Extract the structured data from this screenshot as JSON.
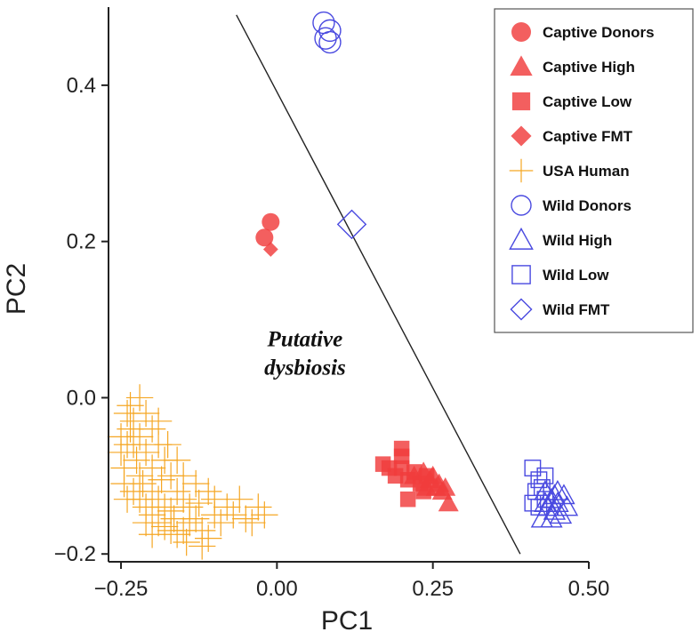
{
  "chart_data": {
    "type": "scatter",
    "title": "",
    "xlabel": "PC1",
    "ylabel": "PC2",
    "xlim": [
      -0.27,
      0.5
    ],
    "ylim": [
      -0.21,
      0.5
    ],
    "xticks": [
      -0.25,
      0.0,
      0.25,
      0.5
    ],
    "yticks": [
      -0.2,
      0.0,
      0.2,
      0.4
    ],
    "xtick_labels": [
      "−0.25",
      "0.00",
      "0.25",
      "0.50"
    ],
    "ytick_labels": [
      "−0.2",
      "0.0",
      "0.2",
      "0.4"
    ],
    "grid": false,
    "legend_position": "top-right",
    "annotation": {
      "lines": [
        "Putative",
        "dysbiosis"
      ],
      "x": 0.045,
      "y": 0.05
    },
    "divider_line": [
      [
        -0.065,
        0.49
      ],
      [
        0.39,
        -0.2
      ]
    ],
    "series": [
      {
        "name": "Captive Donors",
        "marker": "circle",
        "filled": true,
        "color": "#f03c3c",
        "points": [
          [
            -0.01,
            0.225
          ],
          [
            -0.02,
            0.205
          ]
        ]
      },
      {
        "name": "Captive High",
        "marker": "triangle",
        "filled": true,
        "color": "#f03c3c",
        "points": [
          [
            0.22,
            -0.1
          ],
          [
            0.24,
            -0.115
          ],
          [
            0.255,
            -0.115
          ],
          [
            0.265,
            -0.12
          ],
          [
            0.27,
            -0.115
          ],
          [
            0.25,
            -0.1
          ],
          [
            0.26,
            -0.11
          ],
          [
            0.245,
            -0.105
          ],
          [
            0.275,
            -0.135
          ],
          [
            0.235,
            -0.095
          ]
        ]
      },
      {
        "name": "Captive Low",
        "marker": "square",
        "filled": true,
        "color": "#f03c3c",
        "points": [
          [
            0.17,
            -0.085
          ],
          [
            0.18,
            -0.09
          ],
          [
            0.2,
            -0.075
          ],
          [
            0.2,
            -0.065
          ],
          [
            0.19,
            -0.1
          ],
          [
            0.21,
            -0.105
          ],
          [
            0.22,
            -0.095
          ],
          [
            0.23,
            -0.11
          ],
          [
            0.21,
            -0.13
          ],
          [
            0.235,
            -0.12
          ],
          [
            0.24,
            -0.1
          ],
          [
            0.2,
            -0.09
          ]
        ]
      },
      {
        "name": "Captive FMT",
        "marker": "diamond",
        "filled": true,
        "color": "#f03c3c",
        "points": [
          [
            -0.01,
            0.19
          ]
        ]
      },
      {
        "name": "USA Human",
        "marker": "plus",
        "filled": false,
        "color": "#f5a623",
        "points": [
          [
            -0.24,
            -0.02
          ],
          [
            -0.235,
            -0.04
          ],
          [
            -0.23,
            -0.06
          ],
          [
            -0.225,
            -0.08
          ],
          [
            -0.22,
            -0.1
          ],
          [
            -0.215,
            -0.11
          ],
          [
            -0.24,
            -0.06
          ],
          [
            -0.245,
            -0.09
          ],
          [
            -0.23,
            -0.12
          ],
          [
            -0.22,
            -0.13
          ],
          [
            -0.21,
            -0.14
          ],
          [
            -0.2,
            -0.15
          ],
          [
            -0.19,
            -0.16
          ],
          [
            -0.18,
            -0.165
          ],
          [
            -0.17,
            -0.17
          ],
          [
            -0.16,
            -0.175
          ],
          [
            -0.15,
            -0.17
          ],
          [
            -0.14,
            -0.16
          ],
          [
            -0.13,
            -0.155
          ],
          [
            -0.12,
            -0.17
          ],
          [
            -0.11,
            -0.18
          ],
          [
            -0.2,
            -0.12
          ],
          [
            -0.19,
            -0.13
          ],
          [
            -0.18,
            -0.14
          ],
          [
            -0.17,
            -0.145
          ],
          [
            -0.2,
            -0.09
          ],
          [
            -0.21,
            -0.07
          ],
          [
            -0.22,
            -0.05
          ],
          [
            -0.23,
            -0.03
          ],
          [
            -0.235,
            -0.01
          ],
          [
            -0.21,
            -0.02
          ],
          [
            -0.2,
            -0.04
          ],
          [
            -0.19,
            -0.06
          ],
          [
            -0.18,
            -0.08
          ],
          [
            -0.17,
            -0.1
          ],
          [
            -0.16,
            -0.12
          ],
          [
            -0.15,
            -0.13
          ],
          [
            -0.14,
            -0.14
          ],
          [
            -0.08,
            -0.14
          ],
          [
            -0.07,
            -0.15
          ],
          [
            -0.06,
            -0.13
          ],
          [
            -0.05,
            -0.155
          ],
          [
            -0.04,
            -0.16
          ],
          [
            -0.03,
            -0.14
          ],
          [
            -0.02,
            -0.15
          ],
          [
            -0.1,
            -0.15
          ],
          [
            -0.09,
            -0.16
          ],
          [
            -0.25,
            -0.07
          ],
          [
            -0.245,
            -0.11
          ],
          [
            -0.21,
            -0.16
          ],
          [
            -0.2,
            -0.175
          ],
          [
            -0.12,
            -0.19
          ],
          [
            -0.1,
            -0.13
          ],
          [
            -0.11,
            -0.12
          ],
          [
            -0.13,
            -0.11
          ],
          [
            -0.15,
            -0.1
          ],
          [
            -0.16,
            -0.08
          ],
          [
            -0.175,
            -0.06
          ],
          [
            -0.19,
            -0.03
          ],
          [
            -0.22,
            0.0
          ],
          [
            -0.25,
            -0.05
          ],
          [
            -0.24,
            -0.13
          ],
          [
            -0.185,
            -0.105
          ],
          [
            -0.165,
            -0.155
          ],
          [
            -0.145,
            -0.185
          ],
          [
            -0.125,
            -0.135
          ]
        ]
      },
      {
        "name": "Wild Donors",
        "marker": "circle",
        "filled": false,
        "color": "#4a4ae0",
        "points": [
          [
            0.075,
            0.48
          ],
          [
            0.085,
            0.47
          ],
          [
            0.078,
            0.46
          ],
          [
            0.085,
            0.455
          ]
        ]
      },
      {
        "name": "Wild High",
        "marker": "triangle",
        "filled": false,
        "color": "#4a4ae0",
        "points": [
          [
            0.43,
            -0.12
          ],
          [
            0.44,
            -0.13
          ],
          [
            0.45,
            -0.135
          ],
          [
            0.46,
            -0.125
          ],
          [
            0.435,
            -0.14
          ],
          [
            0.445,
            -0.145
          ],
          [
            0.455,
            -0.15
          ],
          [
            0.425,
            -0.155
          ],
          [
            0.44,
            -0.155
          ],
          [
            0.45,
            -0.12
          ],
          [
            0.465,
            -0.14
          ],
          [
            0.43,
            -0.135
          ],
          [
            0.445,
            -0.125
          ]
        ]
      },
      {
        "name": "Wild Low",
        "marker": "square",
        "filled": false,
        "color": "#4a4ae0",
        "points": [
          [
            0.41,
            -0.09
          ],
          [
            0.42,
            -0.105
          ],
          [
            0.415,
            -0.12
          ],
          [
            0.43,
            -0.13
          ],
          [
            0.42,
            -0.14
          ],
          [
            0.41,
            -0.135
          ],
          [
            0.43,
            -0.1
          ],
          [
            0.425,
            -0.115
          ]
        ]
      },
      {
        "name": "Wild FMT",
        "marker": "diamond",
        "filled": false,
        "color": "#4a4ae0",
        "points": [
          [
            0.12,
            0.222
          ]
        ]
      }
    ]
  }
}
